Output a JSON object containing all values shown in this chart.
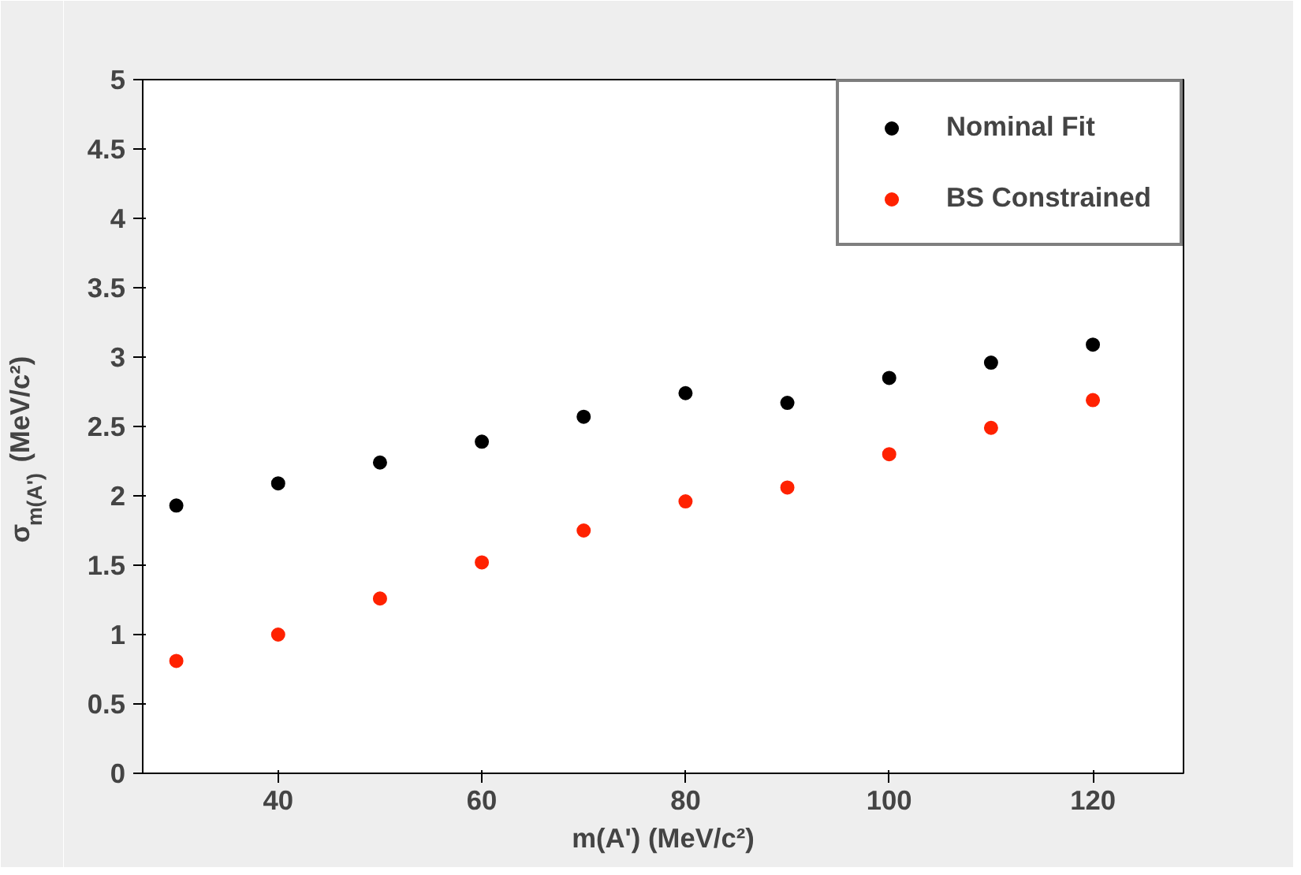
{
  "chart_data": {
    "type": "scatter",
    "xlabel": "m(A') (MeV/c²)",
    "ylabel": "σ$_{m(A')}$ (MeV/c²)",
    "x": [
      30,
      40,
      50,
      60,
      70,
      80,
      90,
      100,
      110,
      120
    ],
    "series": [
      {
        "name": "Nominal Fit",
        "color": "#000000",
        "values": [
          1.93,
          2.09,
          2.24,
          2.39,
          2.57,
          2.74,
          2.67,
          2.85,
          2.96,
          3.09
        ]
      },
      {
        "name": "BS Constrained",
        "color": "#ff2200",
        "values": [
          0.81,
          1.0,
          1.26,
          1.52,
          1.75,
          1.96,
          2.06,
          2.3,
          2.49,
          2.69
        ]
      }
    ],
    "xlim": [
      26.7,
      128.9
    ],
    "ylim": [
      0,
      5
    ],
    "xticks": [
      40,
      60,
      80,
      100,
      120
    ],
    "yticks": [
      0,
      0.5,
      1,
      1.5,
      2,
      2.5,
      3,
      3.5,
      4,
      4.5,
      5
    ],
    "grid": false,
    "legend": "top right",
    "marker": "circle"
  }
}
